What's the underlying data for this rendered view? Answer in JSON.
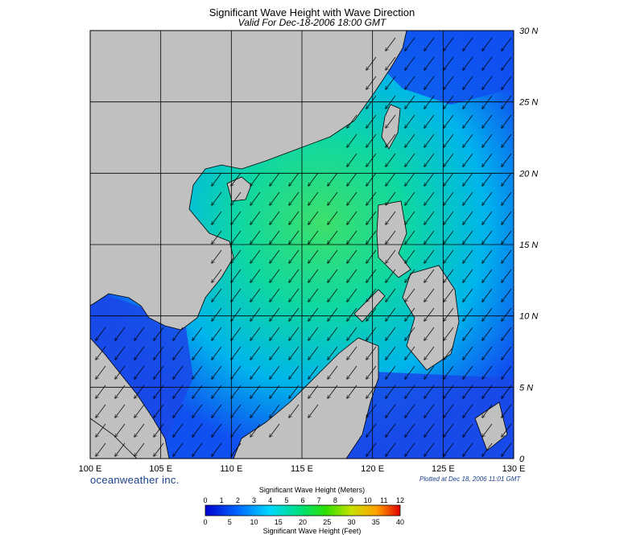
{
  "title": "Significant Wave Height with Wave Direction",
  "subtitle": "Valid For Dec-18-2006 18:00 GMT",
  "lon_labels": [
    "100 E",
    "105 E",
    "110 E",
    "115 E",
    "120 E",
    "125 E",
    "130 E"
  ],
  "lat_labels": [
    "0",
    "5 N",
    "10 N",
    "15 N",
    "20 N",
    "25 N",
    "30 N"
  ],
  "brand": "oceanweather inc.",
  "plotted": "Plotted at Dec 18, 2006 11:01 GMT",
  "legend": {
    "meters_title": "Significant Wave Height (Meters)",
    "feet_title": "Significant Wave Height (Feet)",
    "meters_ticks": [
      "0",
      "1",
      "2",
      "3",
      "4",
      "5",
      "6",
      "7",
      "8",
      "9",
      "10",
      "11",
      "12"
    ],
    "feet_ticks": [
      "0",
      "5",
      "10",
      "15",
      "20",
      "25",
      "30",
      "35",
      "40"
    ]
  },
  "colors": {
    "land": "#c0c0c0",
    "low": "#1414c8",
    "mid": "#00c8e0",
    "high": "#2ee07a",
    "peak": "#e02828"
  }
}
